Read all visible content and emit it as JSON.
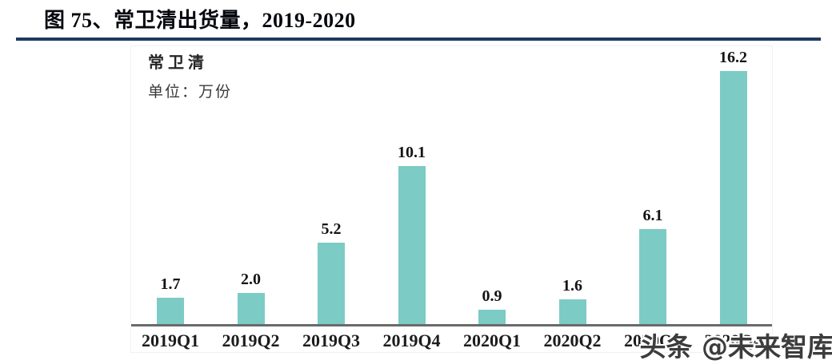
{
  "figure": {
    "title": "图 75、常卫清出货量，2019-2020",
    "rule_color": "#1f3a60"
  },
  "chart_data": {
    "type": "bar",
    "title": "常卫清",
    "unit_label": "单位：万份",
    "categories": [
      "2019Q1",
      "2019Q2",
      "2019Q3",
      "2019Q4",
      "2020Q1",
      "2020Q2",
      "2020Q3",
      "2020Q4"
    ],
    "values": [
      1.7,
      2.0,
      5.2,
      10.1,
      0.9,
      1.6,
      6.1,
      16.2
    ],
    "value_labels": [
      "1.7",
      "2.0",
      "5.2",
      "10.1",
      "0.9",
      "1.6",
      "6.1",
      "16.2"
    ],
    "xlabel": "",
    "ylabel": "万份",
    "ylim": [
      0,
      18
    ],
    "grid": false,
    "legend_position": "top-left",
    "bar_color": "#7ccbc4",
    "axis_color": "#6a6a6a",
    "label_color": "#141414"
  },
  "watermark": {
    "text": "头条 @未来智库"
  }
}
